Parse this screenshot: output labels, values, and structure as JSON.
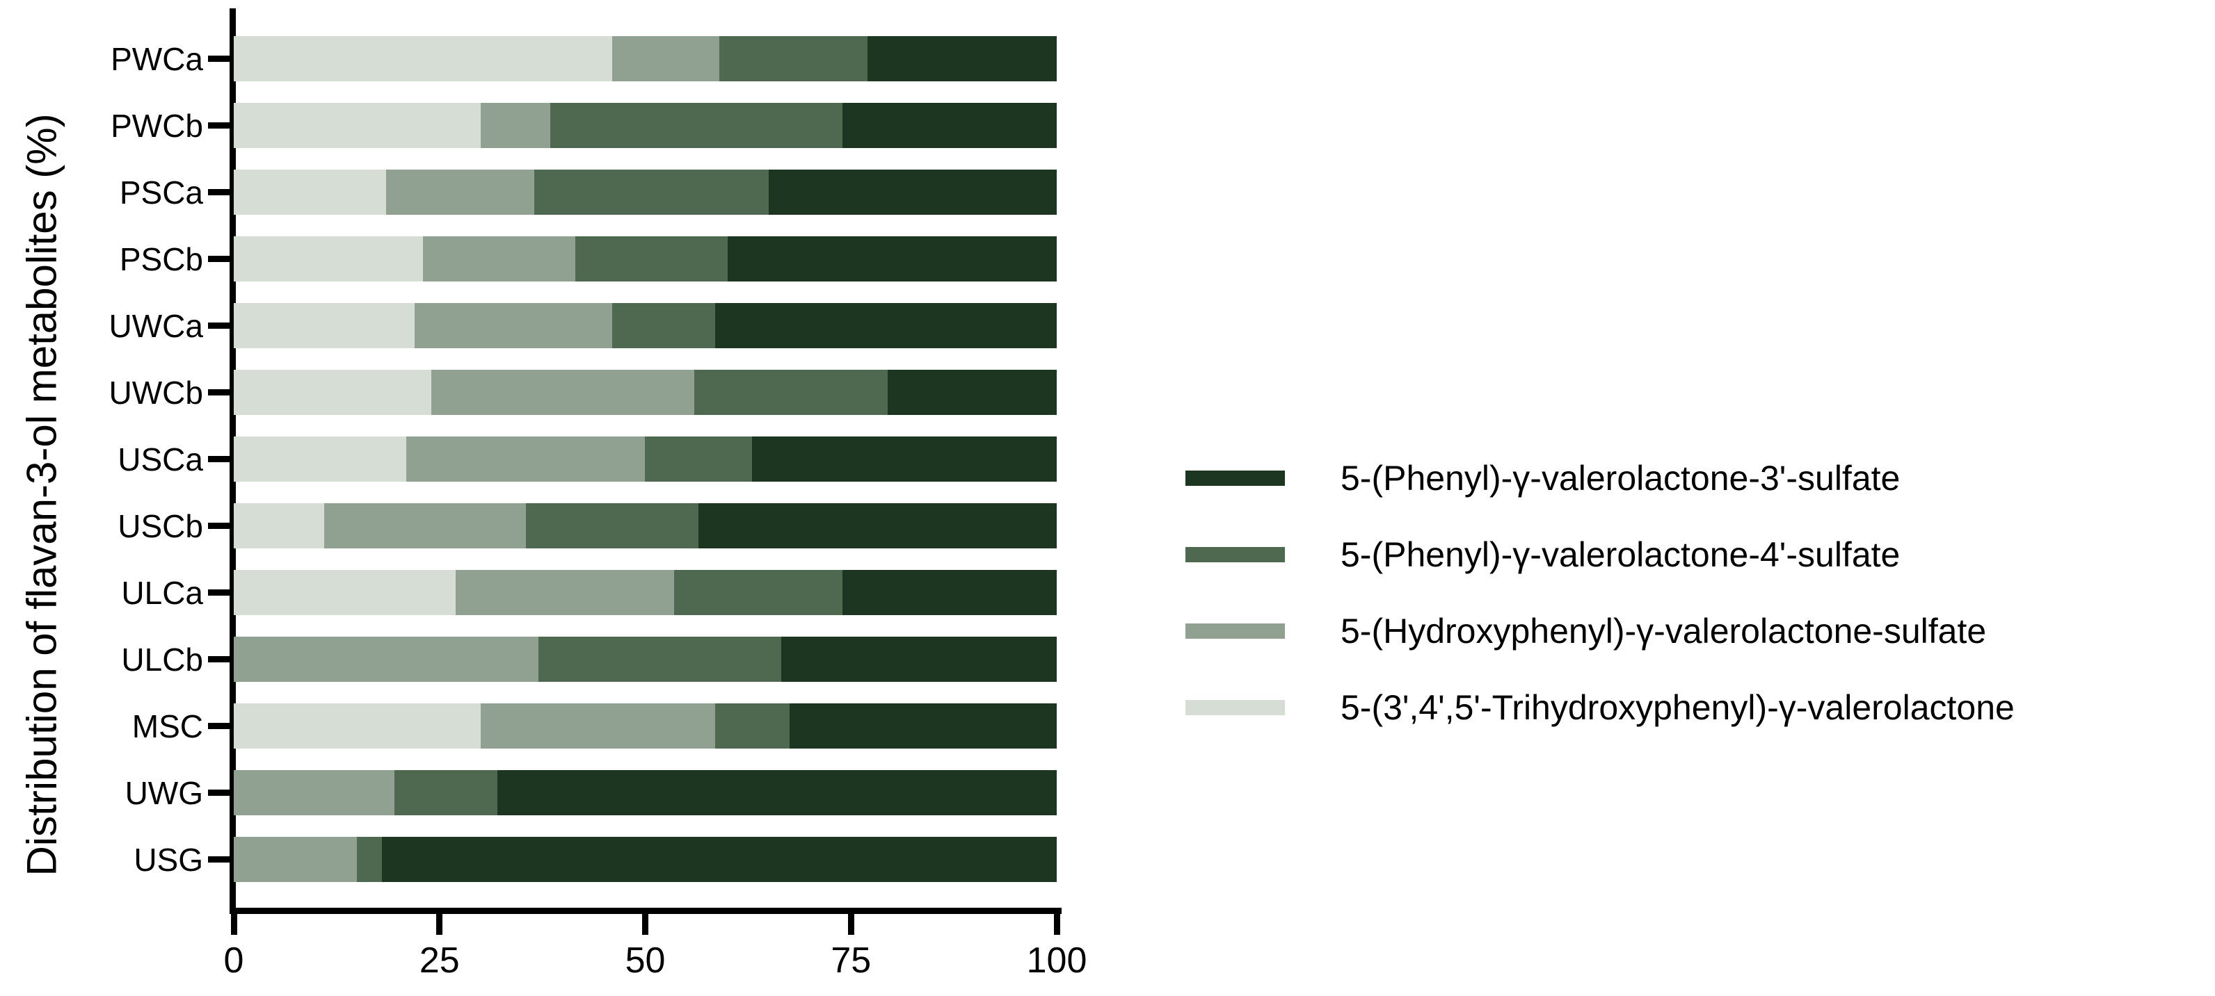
{
  "chart_data": {
    "type": "bar",
    "orientation": "horizontal",
    "stacked": true,
    "title": "",
    "xlabel": "",
    "ylabel": "Distribution of flavan-3-ol metabolites (%)",
    "xlim": [
      0,
      100
    ],
    "x_ticks": [
      "0",
      "25",
      "50",
      "75",
      "100"
    ],
    "x_tick_values": [
      0,
      25,
      50,
      75,
      100
    ],
    "grid": false,
    "legend_position": "right",
    "categories": [
      "PWCa",
      "PWCb",
      "PSCa",
      "PSCb",
      "UWCa",
      "UWCb",
      "USCa",
      "USCb",
      "ULCa",
      "ULCb",
      "MSC",
      "UWG",
      "USG"
    ],
    "series": [
      {
        "name": "5-(3',4',5'-Trihydroxyphenyl)-γ-valerolactone",
        "color": "#d6ddd4",
        "values": [
          46,
          30,
          18.5,
          23,
          22,
          24,
          21,
          11,
          27,
          0,
          30,
          0,
          0
        ]
      },
      {
        "name": "5-(Hydroxyphenyl)-γ-valerolactone-sulfate",
        "color": "#90a191",
        "values": [
          13,
          8.5,
          18,
          18.5,
          24,
          32,
          29,
          24.5,
          26.5,
          37,
          28.5,
          19.5,
          15
        ]
      },
      {
        "name": "5-(Phenyl)-γ-valerolactone-4'-sulfate",
        "color": "#4e6950",
        "values": [
          18,
          35.5,
          28.5,
          18.5,
          12.5,
          23.5,
          13,
          21,
          20.5,
          29.5,
          9,
          12.5,
          3
        ]
      },
      {
        "name": "5-(Phenyl)-γ-valerolactone-3'-sulfate",
        "color": "#1d3621",
        "values": [
          23,
          26,
          35,
          40,
          41.5,
          20.5,
          37,
          43.5,
          26,
          33.5,
          32.5,
          68,
          82
        ]
      }
    ],
    "legend_entries": [
      {
        "label": "5-(Phenyl)-γ-valerolactone-3'-sulfate",
        "color": "#1d3621"
      },
      {
        "label": "5-(Phenyl)-γ-valerolactone-4'-sulfate",
        "color": "#4e6950"
      },
      {
        "label": "5-(Hydroxyphenyl)-γ-valerolactone-sulfate",
        "color": "#90a191"
      },
      {
        "label": "5-(3',4',5'-Trihydroxyphenyl)-γ-valerolactone",
        "color": "#d6ddd4"
      }
    ],
    "axis_color": "#000000",
    "text_color": "#000000"
  }
}
